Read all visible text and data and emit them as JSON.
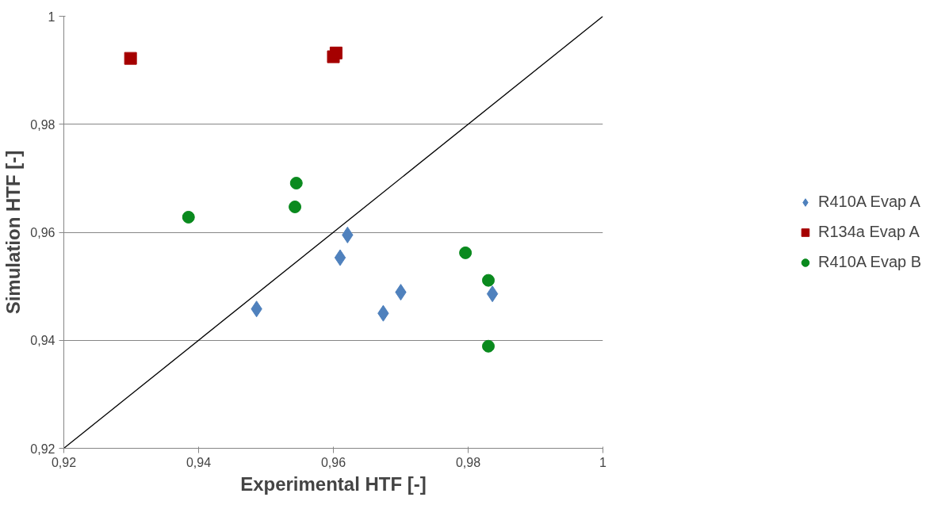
{
  "chart_data": {
    "type": "scatter",
    "xlabel": "Experimental HTF [-]",
    "ylabel": "Simulation HTF [-]",
    "xlim": [
      0.92,
      1
    ],
    "ylim": [
      0.92,
      1
    ],
    "xticks": [
      {
        "value": 0.92,
        "label": "0,92"
      },
      {
        "value": 0.94,
        "label": "0,94"
      },
      {
        "value": 0.96,
        "label": "0,96"
      },
      {
        "value": 0.98,
        "label": "0,98"
      },
      1
    ],
    "yticks": [
      {
        "value": 0.92,
        "label": "0,92"
      },
      {
        "value": 0.94,
        "label": "0,94"
      },
      {
        "value": 0.96,
        "label": "0,96"
      },
      {
        "value": 0.98,
        "label": "0,98"
      },
      1
    ],
    "grid": "y",
    "legend": "right",
    "series": [
      {
        "name": "R410A Evap A",
        "color": "#4f81bd",
        "marker": "diamond",
        "x": [
          0.9486,
          0.961,
          0.9621,
          0.9674,
          0.97,
          0.9836
        ],
        "values": [
          0.9458,
          0.9553,
          0.9595,
          0.945,
          0.9489,
          0.9486
        ]
      },
      {
        "name": "R134a Evap A",
        "color": "#a50000",
        "marker": "square",
        "x": [
          0.9299,
          0.96,
          0.9604
        ],
        "values": [
          0.9922,
          0.9925,
          0.9932
        ]
      },
      {
        "name": "R410A Evap B",
        "color": "#0a8a1e",
        "marker": "circle",
        "x": [
          0.9385,
          0.9543,
          0.9545,
          0.9796,
          0.983,
          0.983
        ],
        "values": [
          0.9628,
          0.9647,
          0.9691,
          0.9562,
          0.9511,
          0.9389
        ]
      },
      {
        "type": "line",
        "color": "#000000",
        "marker": "none",
        "x": [
          0.92,
          1
        ],
        "values": [
          0.92,
          1
        ]
      }
    ]
  }
}
